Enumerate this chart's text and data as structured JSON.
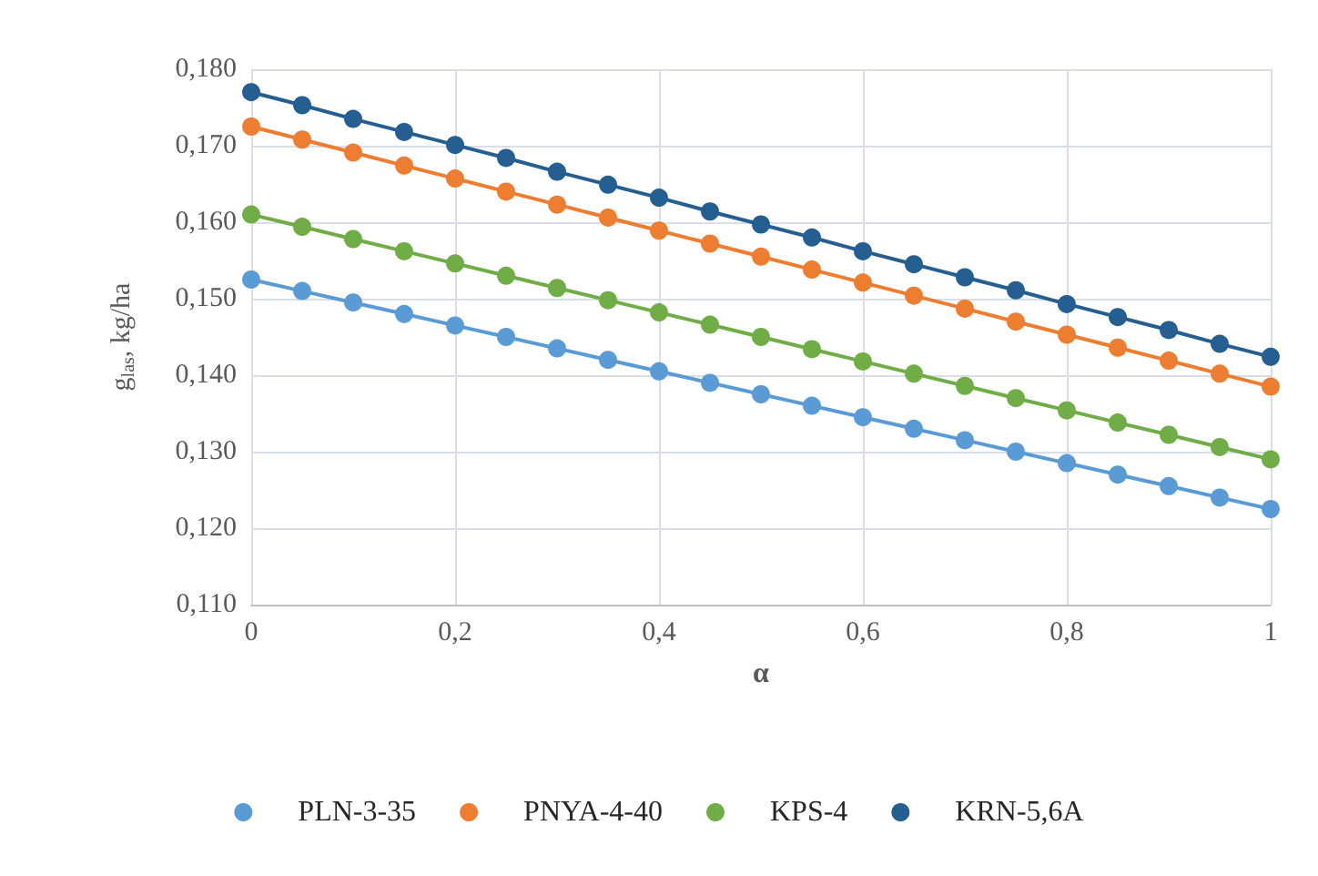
{
  "chart_data": {
    "type": "line",
    "xlabel": "α",
    "ylabel": "g$_{las}$, kg/ha",
    "x": [
      0,
      0.05,
      0.1,
      0.15,
      0.2,
      0.25,
      0.3,
      0.35,
      0.4,
      0.45,
      0.5,
      0.55,
      0.6,
      0.65,
      0.7,
      0.75,
      0.8,
      0.85,
      0.9,
      0.95,
      1
    ],
    "series": [
      {
        "name": "PLN-3-35",
        "color": "#5b9bd5",
        "values": [
          0.1525,
          0.151,
          0.1495,
          0.148,
          0.1465,
          0.145,
          0.1435,
          0.142,
          0.1405,
          0.139,
          0.1375,
          0.136,
          0.1345,
          0.133,
          0.1315,
          0.13,
          0.1285,
          0.127,
          0.1255,
          0.124,
          0.1225
        ]
      },
      {
        "name": "PNYA-4-40",
        "color": "#ed7d31",
        "values": [
          0.1725,
          0.1708,
          0.1691,
          0.1674,
          0.1657,
          0.164,
          0.1623,
          0.1606,
          0.1589,
          0.1572,
          0.1555,
          0.1538,
          0.1521,
          0.1504,
          0.1487,
          0.147,
          0.1453,
          0.1436,
          0.1419,
          0.1402,
          0.1385
        ]
      },
      {
        "name": "KPS-4",
        "color": "#70ad47",
        "values": [
          0.161,
          0.1594,
          0.1578,
          0.1562,
          0.1546,
          0.153,
          0.1514,
          0.1498,
          0.1482,
          0.1466,
          0.145,
          0.1434,
          0.1418,
          0.1402,
          0.1386,
          0.137,
          0.1354,
          0.1338,
          0.1322,
          0.1306,
          0.129
        ]
      },
      {
        "name": "KRN-5,6A",
        "color": "#255e91",
        "values": [
          0.177,
          0.1753,
          0.1735,
          0.1718,
          0.1701,
          0.1684,
          0.1666,
          0.1649,
          0.1632,
          0.1614,
          0.1597,
          0.158,
          0.1562,
          0.1545,
          0.1528,
          0.1511,
          0.1493,
          0.1476,
          0.1459,
          0.1441,
          0.1424
        ]
      }
    ],
    "xlim": [
      0,
      1
    ],
    "xticks": [
      0,
      {
        "value": 0.2,
        "label": "0,2"
      },
      {
        "value": 0.4,
        "label": "0,4"
      },
      {
        "value": 0.6,
        "label": "0,6"
      },
      {
        "value": 0.8,
        "label": "0,8"
      },
      1
    ],
    "ylim": [
      0.11,
      0.18
    ],
    "yticks": [
      {
        "value": 0.11,
        "label": "0,110"
      },
      {
        "value": 0.12,
        "label": "0,120"
      },
      {
        "value": 0.13,
        "label": "0,130"
      },
      {
        "value": 0.14,
        "label": "0,140"
      },
      {
        "value": 0.15,
        "label": "0,150"
      },
      {
        "value": 0.16,
        "label": "0,160"
      },
      {
        "value": 0.17,
        "label": "0,170"
      },
      {
        "value": 0.18,
        "label": "0,180"
      }
    ],
    "grid": true,
    "legend": "bottom",
    "marker": "circle",
    "line_style": "solid"
  }
}
